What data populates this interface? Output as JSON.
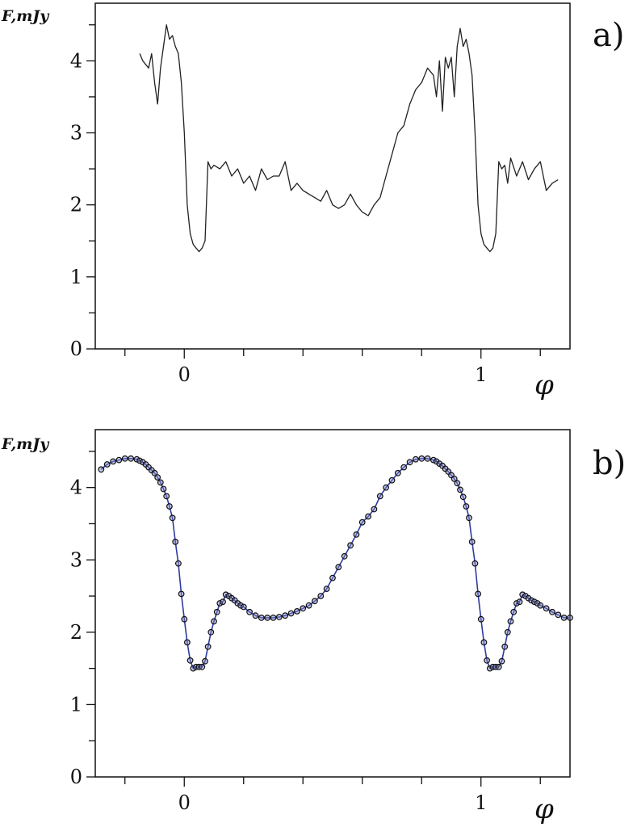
{
  "chart_data": [
    {
      "panel": "a)",
      "type": "line",
      "ylabel": "F,mJy",
      "xlabel": "φ",
      "xlim": [
        -0.3,
        1.3
      ],
      "ylim": [
        0,
        4.8
      ],
      "x_ticks": [
        -0.2,
        0,
        0.2,
        0.4,
        0.6,
        0.8,
        1,
        1.2
      ],
      "x_tick_labels": [
        "0",
        "1"
      ],
      "x_tick_label_values": [
        0,
        1
      ],
      "y_ticks": [
        0,
        0.5,
        1,
        1.5,
        2,
        2.5,
        3,
        3.5,
        4,
        4.5
      ],
      "y_tick_labels": [
        "0",
        "1",
        "2",
        "3",
        "4"
      ],
      "y_tick_label_values": [
        0,
        1,
        2,
        3,
        4
      ],
      "color": "#222222",
      "series": [
        {
          "x": [
            -0.15,
            -0.14,
            -0.12,
            -0.11,
            -0.1,
            -0.09,
            -0.08,
            -0.07,
            -0.06,
            -0.05,
            -0.04,
            -0.03,
            -0.02,
            -0.01,
            0.0,
            0.01,
            0.02,
            0.03,
            0.04,
            0.05,
            0.06,
            0.07,
            0.08,
            0.09,
            0.1,
            0.12,
            0.14,
            0.16,
            0.18,
            0.2,
            0.22,
            0.24,
            0.26,
            0.28,
            0.3,
            0.32,
            0.34,
            0.36,
            0.38,
            0.4,
            0.42,
            0.44,
            0.46,
            0.48,
            0.5,
            0.52,
            0.54,
            0.56,
            0.58,
            0.6,
            0.62,
            0.64,
            0.66,
            0.68,
            0.7,
            0.72,
            0.74,
            0.76,
            0.78,
            0.8,
            0.82,
            0.84,
            0.85,
            0.86,
            0.87,
            0.88,
            0.89,
            0.9,
            0.91,
            0.92,
            0.93,
            0.94,
            0.95,
            0.96,
            0.97,
            0.98,
            0.99,
            1.0,
            1.01,
            1.02,
            1.03,
            1.04,
            1.05,
            1.06,
            1.07,
            1.08,
            1.09,
            1.1,
            1.12,
            1.14,
            1.16,
            1.18,
            1.2,
            1.22,
            1.24,
            1.26
          ],
          "y": [
            4.1,
            4.0,
            3.9,
            4.1,
            3.7,
            3.4,
            3.9,
            4.2,
            4.5,
            4.3,
            4.35,
            4.2,
            4.1,
            3.7,
            3.0,
            2.0,
            1.6,
            1.45,
            1.4,
            1.35,
            1.4,
            1.5,
            2.6,
            2.5,
            2.55,
            2.5,
            2.6,
            2.4,
            2.5,
            2.3,
            2.4,
            2.2,
            2.5,
            2.35,
            2.4,
            2.4,
            2.6,
            2.2,
            2.3,
            2.2,
            2.15,
            2.1,
            2.05,
            2.2,
            2.0,
            1.95,
            2.0,
            2.15,
            2.0,
            1.9,
            1.85,
            2.0,
            2.1,
            2.4,
            2.7,
            3.0,
            3.1,
            3.4,
            3.6,
            3.7,
            3.9,
            3.8,
            3.5,
            4.0,
            3.3,
            4.05,
            3.9,
            4.05,
            3.5,
            4.2,
            4.45,
            4.2,
            4.3,
            4.1,
            3.8,
            3.0,
            2.0,
            1.6,
            1.45,
            1.4,
            1.35,
            1.4,
            1.6,
            2.6,
            2.5,
            2.55,
            2.3,
            2.65,
            2.4,
            2.6,
            2.35,
            2.5,
            2.6,
            2.2,
            2.3,
            2.35
          ]
        }
      ]
    },
    {
      "panel": "b)",
      "type": "line",
      "ylabel": "F,mJy",
      "xlabel": "φ",
      "xlim": [
        -0.3,
        1.3
      ],
      "ylim": [
        0,
        4.8
      ],
      "x_ticks": [
        -0.2,
        0,
        0.2,
        0.4,
        0.6,
        0.8,
        1,
        1.2
      ],
      "x_tick_labels": [
        "0",
        "1"
      ],
      "x_tick_label_values": [
        0,
        1
      ],
      "y_ticks": [
        0,
        0.5,
        1,
        1.5,
        2,
        2.5,
        3,
        3.5,
        4,
        4.5
      ],
      "y_tick_labels": [
        "0",
        "1",
        "2",
        "3",
        "4"
      ],
      "y_tick_label_values": [
        0,
        1,
        2,
        3,
        4
      ],
      "line_color": "#2e3ba0",
      "marker": "open-circle",
      "series": [
        {
          "x": [
            -0.28,
            -0.26,
            -0.24,
            -0.22,
            -0.2,
            -0.18,
            -0.16,
            -0.15,
            -0.14,
            -0.13,
            -0.12,
            -0.11,
            -0.1,
            -0.09,
            -0.08,
            -0.07,
            -0.06,
            -0.05,
            -0.04,
            -0.03,
            -0.02,
            -0.01,
            0.0,
            0.01,
            0.02,
            0.03,
            0.04,
            0.05,
            0.06,
            0.07,
            0.08,
            0.09,
            0.1,
            0.11,
            0.12,
            0.13,
            0.14,
            0.15,
            0.16,
            0.17,
            0.18,
            0.19,
            0.2,
            0.22,
            0.24,
            0.26,
            0.28,
            0.3,
            0.32,
            0.34,
            0.36,
            0.38,
            0.4,
            0.42,
            0.44,
            0.46,
            0.48,
            0.5,
            0.52,
            0.54,
            0.56,
            0.58,
            0.6,
            0.62,
            0.64,
            0.66,
            0.68,
            0.7,
            0.72,
            0.74,
            0.76,
            0.78,
            0.8,
            0.82,
            0.84,
            0.85,
            0.86,
            0.87,
            0.88,
            0.89,
            0.9,
            0.91,
            0.92,
            0.93,
            0.94,
            0.95,
            0.96,
            0.97,
            0.98,
            0.99,
            1.0,
            1.01,
            1.02,
            1.03,
            1.04,
            1.05,
            1.06,
            1.07,
            1.08,
            1.09,
            1.1,
            1.11,
            1.12,
            1.13,
            1.14,
            1.15,
            1.16,
            1.17,
            1.18,
            1.19,
            1.2,
            1.22,
            1.24,
            1.26,
            1.28,
            1.3
          ],
          "y": [
            4.25,
            4.32,
            4.36,
            4.38,
            4.4,
            4.4,
            4.39,
            4.37,
            4.35,
            4.32,
            4.28,
            4.24,
            4.2,
            4.14,
            4.07,
            3.98,
            3.88,
            3.74,
            3.58,
            3.25,
            2.95,
            2.53,
            2.18,
            1.86,
            1.61,
            1.5,
            1.52,
            1.52,
            1.52,
            1.6,
            1.8,
            2.0,
            2.15,
            2.28,
            2.4,
            2.42,
            2.52,
            2.5,
            2.47,
            2.44,
            2.4,
            2.37,
            2.35,
            2.28,
            2.23,
            2.2,
            2.2,
            2.2,
            2.21,
            2.23,
            2.26,
            2.29,
            2.33,
            2.37,
            2.43,
            2.5,
            2.6,
            2.75,
            2.9,
            3.05,
            3.2,
            3.35,
            3.52,
            3.6,
            3.7,
            3.88,
            4.0,
            4.1,
            4.2,
            4.28,
            4.35,
            4.39,
            4.4,
            4.4,
            4.38,
            4.36,
            4.33,
            4.3,
            4.26,
            4.22,
            4.17,
            4.12,
            4.06,
            3.97,
            3.87,
            3.74,
            3.58,
            3.25,
            2.95,
            2.53,
            2.18,
            1.86,
            1.61,
            1.5,
            1.52,
            1.52,
            1.52,
            1.6,
            1.8,
            2.0,
            2.15,
            2.28,
            2.4,
            2.42,
            2.52,
            2.5,
            2.47,
            2.44,
            2.42,
            2.4,
            2.37,
            2.33,
            2.28,
            2.24,
            2.2,
            2.2
          ]
        }
      ]
    }
  ]
}
